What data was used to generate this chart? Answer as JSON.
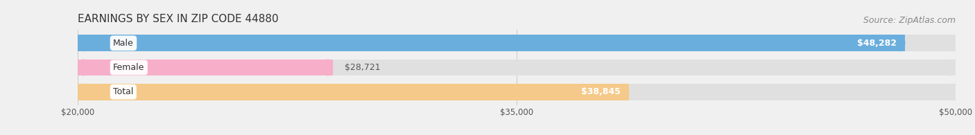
{
  "title": "EARNINGS BY SEX IN ZIP CODE 44880",
  "source": "Source: ZipAtlas.com",
  "categories": [
    "Male",
    "Female",
    "Total"
  ],
  "values": [
    48282,
    28721,
    38845
  ],
  "bar_colors": [
    "#6aaedd",
    "#f7aec8",
    "#f5c98a"
  ],
  "bar_labels": [
    "$48,282",
    "$28,721",
    "$38,845"
  ],
  "label_inside": [
    true,
    false,
    true
  ],
  "xmin": 20000,
  "xmax": 50000,
  "xticks": [
    20000,
    35000,
    50000
  ],
  "xtick_labels": [
    "$20,000",
    "$35,000",
    "$50,000"
  ],
  "background_color": "#f0f0f0",
  "bar_bg_color": "#e0e0e0",
  "title_fontsize": 11,
  "source_fontsize": 9,
  "label_fontsize": 9,
  "cat_label_fontsize": 9
}
